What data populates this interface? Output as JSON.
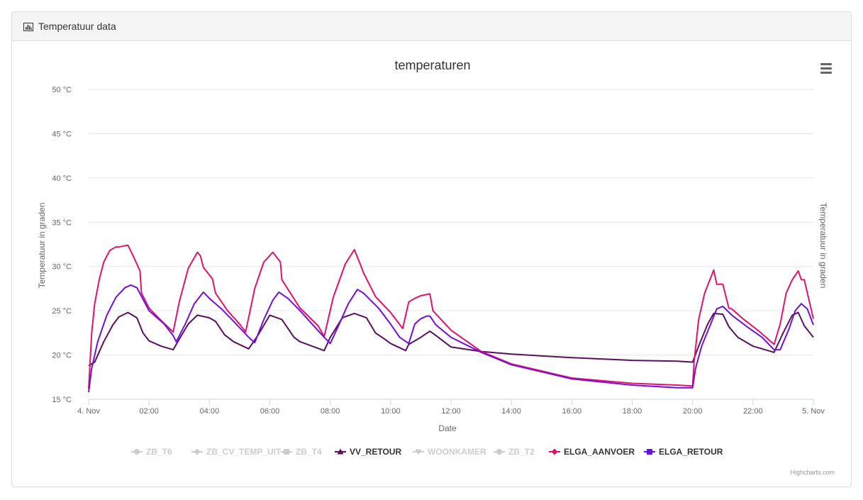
{
  "panel": {
    "title": "Temperatuur data",
    "icon": "bar-chart-icon"
  },
  "menu": {
    "icon": "hamburger-menu-icon"
  },
  "credits": "Highcharts.com",
  "chart_data": {
    "type": "line",
    "title": "temperaturen",
    "xlabel": "Date",
    "ylabel": "Temperatuur in graden",
    "ylabel_right": "Temperatuur in graden",
    "ylim": [
      15,
      50
    ],
    "xlim": [
      0,
      24
    ],
    "grid": true,
    "legend_placement": "bottom",
    "y_ticks": [
      "50 °C",
      "45 °C",
      "40 °C",
      "35 °C",
      "30 °C",
      "25 °C",
      "20 °C",
      "15 °C"
    ],
    "y_tick_values": [
      50,
      45,
      40,
      35,
      30,
      25,
      20,
      15
    ],
    "x_ticks": [
      "4. Nov",
      "02:00",
      "04:00",
      "06:00",
      "08:00",
      "10:00",
      "12:00",
      "14:00",
      "16:00",
      "18:00",
      "20:00",
      "22:00",
      "5. Nov"
    ],
    "x_tick_values": [
      0,
      2,
      4,
      6,
      8,
      10,
      12,
      14,
      16,
      18,
      20,
      22,
      24
    ],
    "legend": [
      {
        "name": "ZB_T6",
        "visible": false,
        "marker": "circle",
        "color": "#cccccc"
      },
      {
        "name": "ZB_CV_TEMP_UIT",
        "visible": false,
        "marker": "diamond",
        "color": "#cccccc"
      },
      {
        "name": "ZB_T4",
        "visible": false,
        "marker": "square",
        "color": "#cccccc"
      },
      {
        "name": "VV_RETOUR",
        "visible": true,
        "marker": "triangle",
        "color": "#5c0f5c"
      },
      {
        "name": "WOONKAMER",
        "visible": false,
        "marker": "triangle-down",
        "color": "#cccccc"
      },
      {
        "name": "ZB_T2",
        "visible": false,
        "marker": "circle",
        "color": "#cccccc"
      },
      {
        "name": "ELGA_AANVOER",
        "visible": true,
        "marker": "diamond",
        "color": "#e6106a"
      },
      {
        "name": "ELGA_RETOUR",
        "visible": true,
        "marker": "square",
        "color": "#7010e0"
      }
    ],
    "series": [
      {
        "name": "VV_RETOUR",
        "color": "#5c0f5c",
        "x": [
          0,
          0.2,
          0.5,
          0.8,
          1.0,
          1.3,
          1.6,
          1.8,
          2.0,
          2.4,
          2.8,
          3.0,
          3.3,
          3.6,
          4.0,
          4.2,
          4.5,
          4.8,
          5.3,
          5.6,
          6.0,
          6.4,
          6.8,
          7.0,
          7.4,
          7.8,
          8.0,
          8.4,
          8.8,
          9.2,
          9.5,
          9.8,
          10.0,
          10.5,
          10.6,
          11.0,
          11.3,
          11.5,
          12.0,
          13.0,
          14.0,
          16.0,
          18.0,
          19.5,
          20.0,
          20.2,
          20.5,
          20.7,
          21.0,
          21.2,
          21.5,
          22.0,
          22.5,
          22.7,
          23.0,
          23.3,
          23.5,
          23.7,
          24.0
        ],
        "values": [
          18.8,
          19.2,
          21.5,
          23.4,
          24.3,
          24.8,
          24.2,
          22.5,
          21.6,
          21.0,
          20.6,
          21.8,
          23.5,
          24.5,
          24.2,
          23.8,
          22.3,
          21.5,
          20.7,
          22.2,
          24.5,
          24.0,
          22.0,
          21.5,
          21.0,
          20.5,
          22.0,
          24.2,
          24.7,
          24.2,
          22.5,
          21.8,
          21.3,
          20.5,
          21.2,
          22.0,
          22.7,
          22.2,
          20.9,
          20.4,
          20.1,
          19.7,
          19.4,
          19.3,
          19.2,
          21.0,
          23.5,
          24.7,
          24.6,
          23.2,
          22.0,
          21.0,
          20.5,
          20.3,
          22.5,
          24.5,
          24.8,
          23.3,
          22.0
        ]
      },
      {
        "name": "ELGA_AANVOER",
        "color": "#e6106a",
        "x": [
          0,
          0.1,
          0.2,
          0.35,
          0.5,
          0.7,
          0.9,
          1.0,
          1.3,
          1.5,
          1.7,
          1.75,
          2.0,
          2.4,
          2.8,
          3.0,
          3.3,
          3.6,
          3.7,
          3.8,
          4.1,
          4.2,
          4.6,
          5.0,
          5.2,
          5.5,
          5.8,
          6.1,
          6.35,
          6.4,
          7.0,
          7.6,
          7.8,
          8.1,
          8.5,
          8.8,
          9.0,
          9.1,
          9.5,
          10.0,
          10.4,
          10.6,
          10.8,
          11.0,
          11.3,
          11.4,
          12.0,
          13.0,
          14.0,
          16.0,
          18.0,
          19.5,
          20.0,
          20.05,
          20.2,
          20.4,
          20.7,
          20.8,
          21.0,
          21.2,
          21.3,
          21.7,
          22.2,
          22.7,
          22.9,
          23.1,
          23.3,
          23.5,
          23.6,
          23.7,
          24.0
        ],
        "values": [
          16.2,
          22.5,
          25.8,
          28.5,
          30.5,
          31.8,
          32.2,
          32.2,
          32.4,
          31.0,
          29.5,
          27.0,
          25.3,
          23.9,
          22.6,
          26.0,
          29.8,
          31.6,
          31.2,
          29.9,
          28.6,
          27.0,
          25.0,
          23.5,
          22.6,
          27.5,
          30.5,
          31.6,
          30.5,
          28.5,
          25.3,
          23.3,
          22.1,
          26.5,
          30.3,
          31.9,
          30.2,
          29.3,
          26.6,
          24.8,
          23.0,
          26.0,
          26.4,
          26.7,
          26.9,
          25.0,
          22.8,
          20.4,
          19.0,
          17.4,
          16.8,
          16.6,
          16.5,
          19.2,
          24.0,
          27.0,
          29.6,
          28.0,
          28.0,
          25.3,
          25.2,
          24.0,
          22.7,
          21.2,
          23.5,
          27.0,
          28.5,
          29.5,
          28.5,
          28.5,
          24.1
        ]
      },
      {
        "name": "ELGA_RETOUR",
        "color": "#7010e0",
        "x": [
          0,
          0.1,
          0.3,
          0.6,
          0.9,
          1.2,
          1.4,
          1.6,
          1.8,
          2.0,
          2.5,
          2.8,
          2.9,
          3.2,
          3.5,
          3.8,
          4.0,
          4.4,
          4.8,
          5.3,
          5.5,
          5.8,
          6.1,
          6.3,
          6.6,
          7.0,
          7.4,
          7.8,
          8.0,
          8.3,
          8.6,
          8.9,
          9.1,
          9.6,
          10.0,
          10.3,
          10.6,
          10.8,
          11.0,
          11.2,
          11.3,
          11.5,
          12.0,
          13.0,
          14.0,
          16.0,
          18.0,
          19.5,
          20.0,
          20.1,
          20.3,
          20.6,
          20.8,
          21.0,
          21.3,
          21.8,
          22.3,
          22.7,
          22.9,
          23.2,
          23.4,
          23.6,
          23.8,
          24.0
        ],
        "values": [
          15.8,
          18.5,
          21.5,
          24.5,
          26.5,
          27.6,
          27.9,
          27.6,
          26.3,
          25.0,
          23.5,
          22.2,
          21.5,
          23.5,
          25.8,
          27.1,
          26.4,
          25.2,
          23.8,
          22.0,
          21.4,
          24.0,
          26.2,
          27.1,
          26.4,
          25.0,
          23.5,
          22.0,
          21.3,
          23.5,
          25.8,
          27.4,
          27.0,
          25.3,
          23.5,
          22.0,
          21.3,
          23.5,
          24.1,
          24.4,
          24.4,
          23.4,
          22.0,
          20.3,
          18.9,
          17.3,
          16.6,
          16.3,
          16.3,
          18.5,
          21.0,
          23.5,
          25.2,
          25.5,
          24.5,
          23.2,
          22.0,
          20.6,
          20.6,
          23.0,
          25.0,
          25.8,
          25.2,
          23.4
        ]
      }
    ]
  }
}
